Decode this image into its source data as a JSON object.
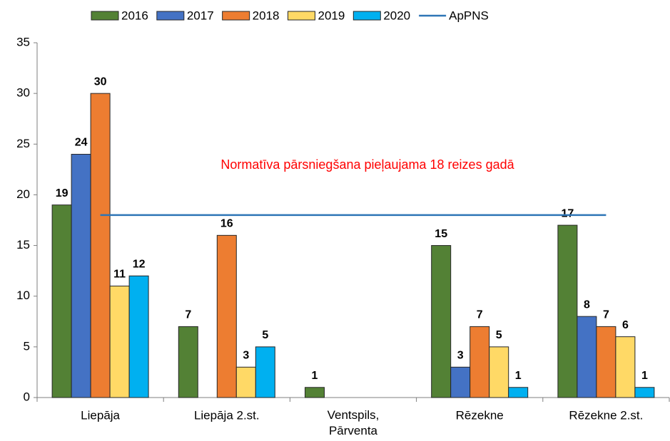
{
  "chart_data": {
    "type": "bar",
    "categories": [
      "Liepāja",
      "Liepāja 2.st.",
      "Ventspils,\nPārventa",
      "Rēzekne",
      "Rēzekne 2.st."
    ],
    "series": [
      {
        "name": "2016",
        "color": "#538135",
        "values": [
          19,
          7,
          1,
          15,
          17
        ]
      },
      {
        "name": "2017",
        "color": "#4472c4",
        "values": [
          24,
          null,
          null,
          3,
          8
        ]
      },
      {
        "name": "2018",
        "color": "#ed7d31",
        "values": [
          30,
          16,
          null,
          7,
          7
        ]
      },
      {
        "name": "2019",
        "color": "#ffd966",
        "values": [
          11,
          3,
          null,
          5,
          6
        ]
      },
      {
        "name": "2020",
        "color": "#00b0f0",
        "values": [
          12,
          5,
          null,
          1,
          1
        ]
      },
      {
        "name": "ApPNS",
        "type": "line",
        "color": "#2e75b6",
        "values": [
          18,
          18,
          18,
          18,
          18
        ]
      }
    ],
    "annotation": "Normatīva pārsniegšana pieļaujama 18 reizes gadā",
    "ylim": [
      0,
      35
    ],
    "yticks": [
      0,
      5,
      10,
      15,
      20,
      25,
      30,
      35
    ],
    "grid": false,
    "legend": "top"
  }
}
